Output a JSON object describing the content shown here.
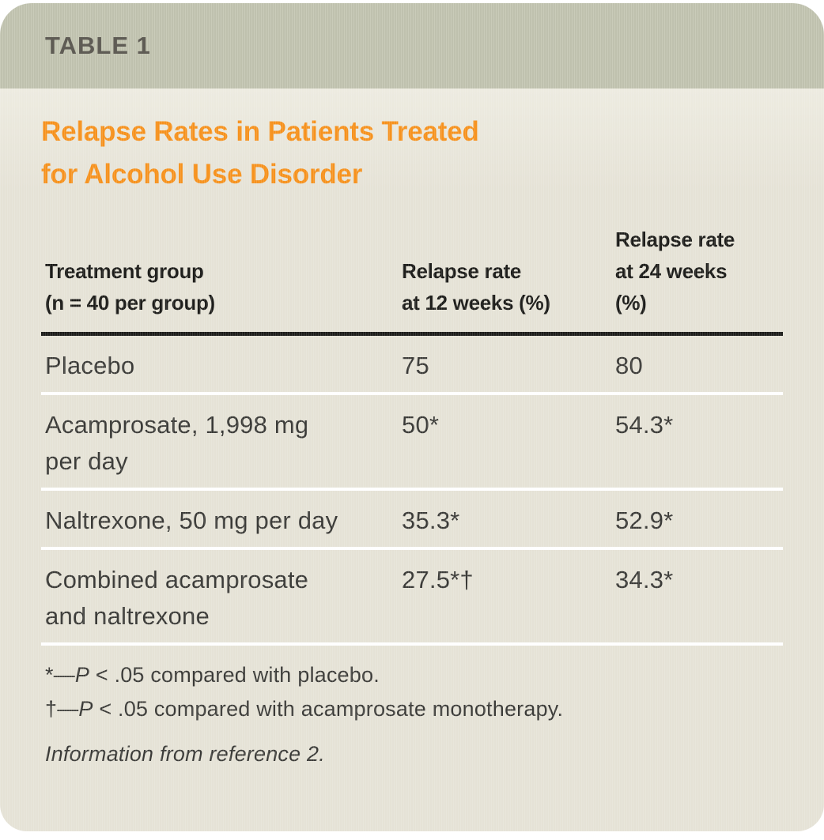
{
  "table": {
    "label": "TABLE 1",
    "title_lines": [
      "Relapse Rates in Patients Treated",
      "for Alcohol Use Disorder"
    ],
    "columns": [
      {
        "id": "treatment-group",
        "lines": [
          "Treatment group",
          "(n = 40 per group)"
        ]
      },
      {
        "id": "relapse-rate-12-weeks",
        "lines": [
          "Relapse rate",
          "at 12 weeks (%)"
        ]
      },
      {
        "id": "relapse-rate-24-weeks",
        "lines": [
          "Relapse rate",
          "at 24 weeks",
          "(%)"
        ]
      }
    ],
    "rows": [
      {
        "cells": [
          "Placebo",
          "75",
          "80"
        ]
      },
      {
        "cells": [
          "Acamprosate, 1,998 mg per day",
          "50*",
          "54.3*"
        ]
      },
      {
        "cells": [
          "Naltrexone, 50 mg per day",
          "35.3*",
          "52.9*"
        ]
      },
      {
        "cells": [
          "Combined acamprosate and naltrexone",
          "27.5*†",
          "34.3*"
        ]
      }
    ],
    "footnotes": [
      {
        "marker": "*—",
        "italic": "P",
        "text": " < .05 compared with placebo."
      },
      {
        "marker": "†—",
        "italic": "P",
        "text": " < .05 compared with acamprosate monotherapy."
      }
    ],
    "source": "Information from reference 2."
  },
  "colors": {
    "band": "#c3c5b1",
    "band_text": "#5f5c55",
    "body_bg": "#e5e2d6",
    "body_bg_top": "#edebe0",
    "title_orange": "#f6921e",
    "header_text": "#1d1d1a",
    "row_text": "#3a3a37",
    "separator": "#ffffff"
  }
}
